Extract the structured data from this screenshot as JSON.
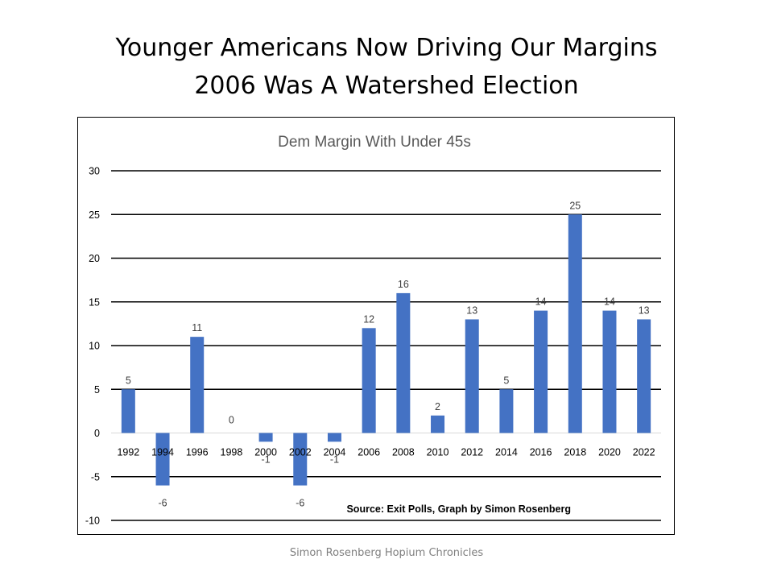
{
  "slide": {
    "title_line1": "Younger Americans Now Driving Our Margins",
    "title_line2": "2006 Was A Watershed Election",
    "footer": "Simon Rosenberg Hopium Chronicles"
  },
  "chart_data": {
    "type": "bar",
    "title": "Dem Margin With Under 45s",
    "categories": [
      "1992",
      "1994",
      "1996",
      "1998",
      "2000",
      "2002",
      "2004",
      "2006",
      "2008",
      "2010",
      "2012",
      "2014",
      "2016",
      "2018",
      "2020",
      "2022"
    ],
    "values": [
      5,
      -6,
      11,
      0,
      -1,
      -6,
      -1,
      12,
      16,
      2,
      13,
      5,
      14,
      25,
      14,
      13
    ],
    "ylim": [
      -10,
      30
    ],
    "yticks": [
      30,
      25,
      20,
      15,
      10,
      5,
      0,
      -5,
      -10
    ],
    "grid": true,
    "bar_color": "#4472c4",
    "annotation": "Source: Exit Polls, Graph by Simon Rosenberg",
    "xlabel": "",
    "ylabel": ""
  }
}
